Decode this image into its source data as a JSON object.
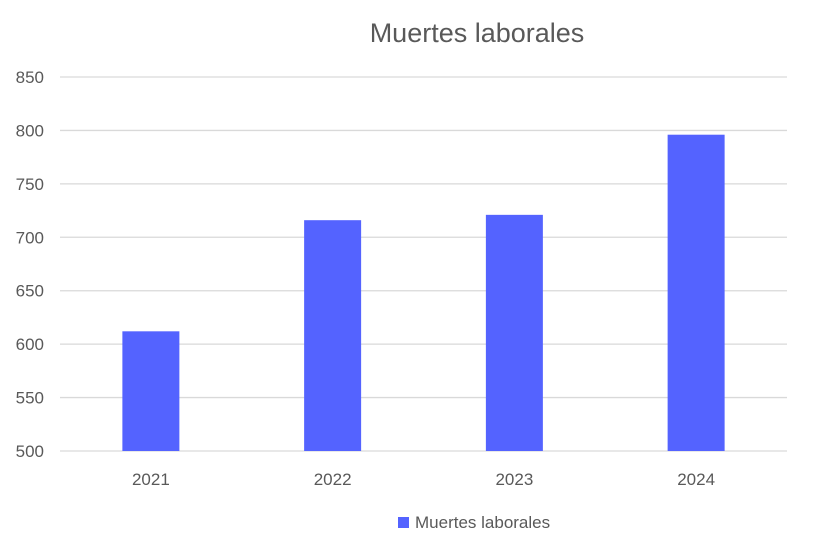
{
  "chart_data": {
    "type": "bar",
    "title": "Muertes laborales",
    "xlabel": "",
    "ylabel": "",
    "categories": [
      "2021",
      "2022",
      "2023",
      "2024"
    ],
    "series": [
      {
        "name": "Muertes laborales",
        "values": [
          612,
          716,
          721,
          796
        ],
        "color": "#5463ff"
      }
    ],
    "ylim": [
      500,
      850
    ],
    "yticks": [
      "500",
      "550",
      "600",
      "650",
      "700",
      "750",
      "800",
      "850"
    ],
    "grid": true,
    "legend_position": "bottom"
  }
}
